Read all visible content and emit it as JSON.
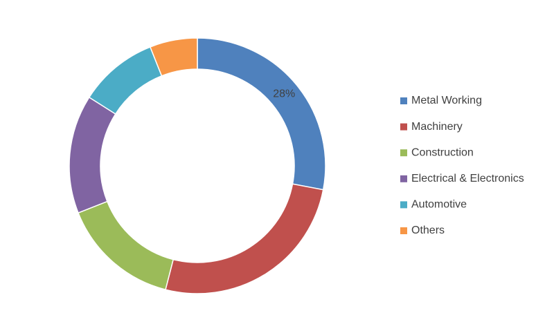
{
  "chart_data": {
    "type": "donut",
    "categories": [
      "Metal Working",
      "Machinery",
      "Construction",
      "Electrical & Electronics",
      "Automotive",
      "Others"
    ],
    "values": [
      28,
      26,
      15,
      15,
      10,
      6
    ],
    "value_labels": [
      "28%",
      null,
      null,
      null,
      null,
      null
    ],
    "colors": [
      "#4f81bd",
      "#c0504d",
      "#9bbb59",
      "#8064a2",
      "#4bacc6",
      "#f79646"
    ],
    "legend": "right"
  }
}
